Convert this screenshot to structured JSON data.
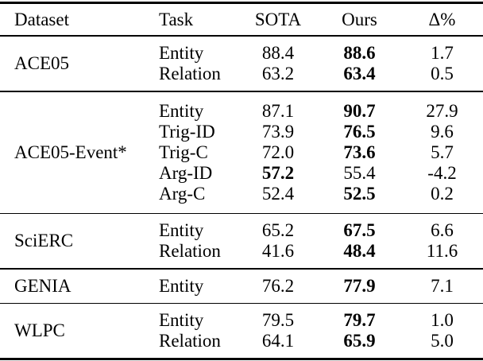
{
  "table": {
    "columns": [
      "Dataset",
      "Task",
      "SOTA",
      "Ours",
      "Δ%"
    ],
    "groups": [
      {
        "dataset": "ACE05",
        "rows": [
          {
            "task": "Entity",
            "sota": "88.4",
            "ours": "88.6",
            "delta": "1.7",
            "best": "ours"
          },
          {
            "task": "Relation",
            "sota": "63.2",
            "ours": "63.4",
            "delta": "0.5",
            "best": "ours"
          }
        ]
      },
      {
        "dataset": "ACE05-Event*",
        "rows": [
          {
            "task": "Entity",
            "sota": "87.1",
            "ours": "90.7",
            "delta": "27.9",
            "best": "ours"
          },
          {
            "task": "Trig-ID",
            "sota": "73.9",
            "ours": "76.5",
            "delta": "9.6",
            "best": "ours"
          },
          {
            "task": "Trig-C",
            "sota": "72.0",
            "ours": "73.6",
            "delta": "5.7",
            "best": "ours"
          },
          {
            "task": "Arg-ID",
            "sota": "57.2",
            "ours": "55.4",
            "delta": "-4.2",
            "best": "sota"
          },
          {
            "task": "Arg-C",
            "sota": "52.4",
            "ours": "52.5",
            "delta": "0.2",
            "best": "ours"
          }
        ]
      },
      {
        "dataset": "SciERC",
        "rows": [
          {
            "task": "Entity",
            "sota": "65.2",
            "ours": "67.5",
            "delta": "6.6",
            "best": "ours"
          },
          {
            "task": "Relation",
            "sota": "41.6",
            "ours": "48.4",
            "delta": "11.6",
            "best": "ours"
          }
        ]
      },
      {
        "dataset": "GENIA",
        "rows": [
          {
            "task": "Entity",
            "sota": "76.2",
            "ours": "77.9",
            "delta": "7.1",
            "best": "ours"
          }
        ]
      },
      {
        "dataset": "WLPC",
        "rows": [
          {
            "task": "Entity",
            "sota": "79.5",
            "ours": "79.7",
            "delta": "1.0",
            "best": "ours"
          },
          {
            "task": "Relation",
            "sota": "64.1",
            "ours": "65.9",
            "delta": "5.0",
            "best": "ours"
          }
        ]
      }
    ]
  }
}
